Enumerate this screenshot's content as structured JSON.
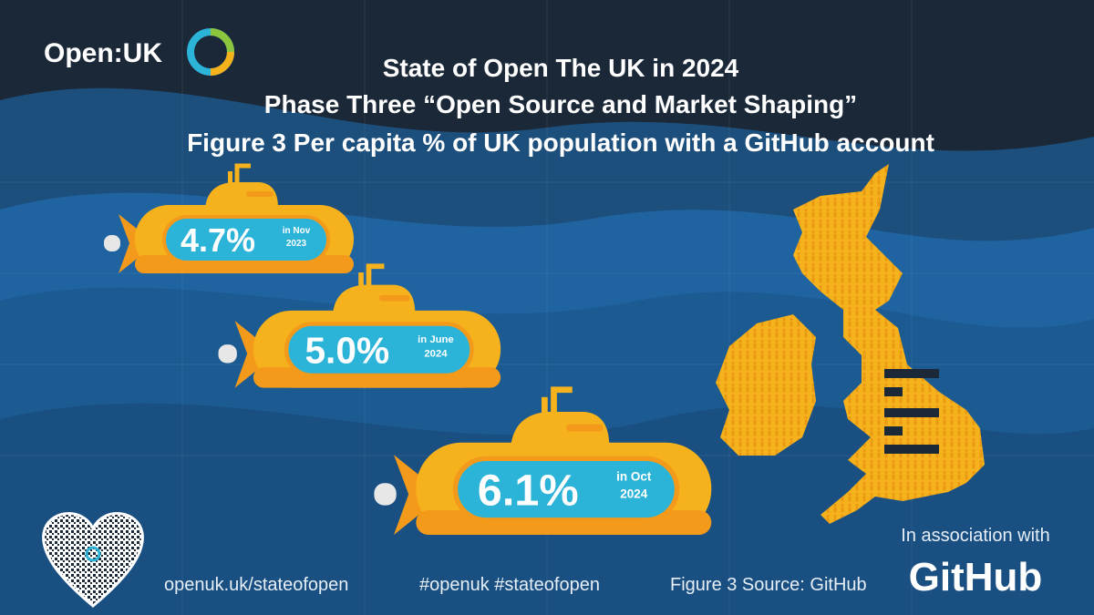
{
  "logo": "Open:UK",
  "title": [
    "State of Open The UK in 2024",
    "Phase Three “Open Source and Market Shaping”",
    "Figure 3 Per capita % of UK population with a GitHub account"
  ],
  "submarines": [
    {
      "value": "4.7%",
      "date": [
        "in Nov",
        "2023"
      ]
    },
    {
      "value": "5.0%",
      "date": [
        "in June",
        "2024"
      ]
    },
    {
      "value": "6.1%",
      "date": [
        "in Oct",
        "2024"
      ]
    }
  ],
  "footer": {
    "url": "openuk.uk/stateofopen",
    "hashtags": "#openuk #stateofopen",
    "source": "Figure 3 Source: GitHub",
    "association": "In association with",
    "partner": "GitHub"
  }
}
